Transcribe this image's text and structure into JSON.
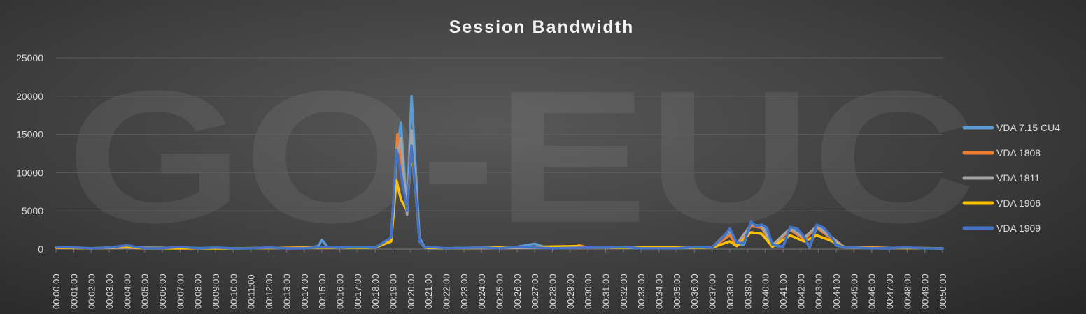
{
  "chart_data": {
    "type": "line",
    "title": "Session Bandwidth",
    "watermark": "GO-EUC",
    "xlabel": "",
    "ylabel": "",
    "ylim": [
      0,
      25000
    ],
    "y_ticks": [
      0,
      5000,
      10000,
      15000,
      20000,
      25000
    ],
    "grid": true,
    "legend_position": "right",
    "colors": {
      "background": "#404040",
      "grid": "#5e5e5e",
      "text": "#d9d9d9",
      "title": "#f2f2f2"
    },
    "x_labels": [
      "00:00:00",
      "00:01:00",
      "00:02:00",
      "00:03:00",
      "00:04:00",
      "00:05:00",
      "00:06:00",
      "00:07:00",
      "00:08:00",
      "00:09:00",
      "00:10:00",
      "00:11:00",
      "00:12:00",
      "00:13:00",
      "00:14:00",
      "00:15:00",
      "00:16:00",
      "00:17:00",
      "00:18:00",
      "00:19:00",
      "00:20:00",
      "00:21:00",
      "00:22:00",
      "00:23:00",
      "00:24:00",
      "00:25:00",
      "00:26:00",
      "00:27:00",
      "00:28:00",
      "00:29:00",
      "00:30:00",
      "00:31:00",
      "00:32:00",
      "00:33:00",
      "00:34:00",
      "00:35:00",
      "00:36:00",
      "00:37:00",
      "00:38:00",
      "00:39:00",
      "00:40:00",
      "00:41:00",
      "00:42:00",
      "00:43:00",
      "00:44:00",
      "00:45:00",
      "00:46:00",
      "00:47:00",
      "00:48:00",
      "00:49:00",
      "00:50:00"
    ],
    "series": [
      {
        "name": "VDA 7.15 CU4",
        "color": "#5b9bd5",
        "points": [
          [
            0,
            300
          ],
          [
            1,
            200
          ],
          [
            2,
            100
          ],
          [
            3,
            200
          ],
          [
            4,
            400
          ],
          [
            5,
            100
          ],
          [
            6,
            100
          ],
          [
            7,
            200
          ],
          [
            8,
            100
          ],
          [
            9,
            100
          ],
          [
            10,
            100
          ],
          [
            11,
            100
          ],
          [
            12,
            200
          ],
          [
            13,
            100
          ],
          [
            14,
            100
          ],
          [
            14.8,
            400
          ],
          [
            15,
            1200
          ],
          [
            15.3,
            300
          ],
          [
            16,
            200
          ],
          [
            17,
            300
          ],
          [
            18,
            200
          ],
          [
            18.9,
            1500
          ],
          [
            19.2,
            12500
          ],
          [
            19.45,
            16500
          ],
          [
            19.8,
            5000
          ],
          [
            20.05,
            20000
          ],
          [
            20.3,
            10000
          ],
          [
            20.5,
            1500
          ],
          [
            20.8,
            200
          ],
          [
            21,
            100
          ],
          [
            22,
            100
          ],
          [
            24,
            200
          ],
          [
            25,
            200
          ],
          [
            26,
            300
          ],
          [
            27,
            700
          ],
          [
            27.5,
            300
          ],
          [
            28,
            200
          ],
          [
            29,
            200
          ],
          [
            30,
            200
          ],
          [
            31,
            200
          ],
          [
            32,
            200
          ],
          [
            33,
            100
          ],
          [
            34,
            100
          ],
          [
            35,
            100
          ],
          [
            36,
            200
          ],
          [
            37,
            200
          ],
          [
            37.6,
            1200
          ],
          [
            38,
            2300
          ],
          [
            38.4,
            600
          ],
          [
            38.8,
            600
          ],
          [
            39.2,
            3400
          ],
          [
            39.5,
            3000
          ],
          [
            39.8,
            3100
          ],
          [
            40.1,
            2500
          ],
          [
            40.4,
            500
          ],
          [
            41,
            300
          ],
          [
            41.4,
            2800
          ],
          [
            41.8,
            2600
          ],
          [
            42.2,
            1500
          ],
          [
            42.5,
            200
          ],
          [
            42.9,
            2900
          ],
          [
            43.3,
            2500
          ],
          [
            43.6,
            1800
          ],
          [
            44,
            500
          ],
          [
            44.5,
            200
          ],
          [
            45,
            200
          ],
          [
            46,
            100
          ],
          [
            47,
            100
          ],
          [
            48,
            200
          ],
          [
            49,
            100
          ],
          [
            50,
            100
          ]
        ]
      },
      {
        "name": "VDA 1808",
        "color": "#ed7d31",
        "points": [
          [
            0,
            200
          ],
          [
            2,
            100
          ],
          [
            4,
            200
          ],
          [
            5,
            100
          ],
          [
            10,
            100
          ],
          [
            15,
            200
          ],
          [
            18,
            200
          ],
          [
            18.9,
            1200
          ],
          [
            19.25,
            15000
          ],
          [
            19.5,
            11000
          ],
          [
            19.8,
            5500
          ],
          [
            20.05,
            15000
          ],
          [
            20.3,
            8000
          ],
          [
            20.5,
            1000
          ],
          [
            20.8,
            200
          ],
          [
            22,
            100
          ],
          [
            29,
            200
          ],
          [
            29.5,
            500
          ],
          [
            30,
            200
          ],
          [
            32,
            200
          ],
          [
            37,
            200
          ],
          [
            38,
            1800
          ],
          [
            38.4,
            500
          ],
          [
            39.2,
            3000
          ],
          [
            39.8,
            2800
          ],
          [
            40.4,
            400
          ],
          [
            41.4,
            2500
          ],
          [
            42.2,
            1300
          ],
          [
            42.9,
            2800
          ],
          [
            43.6,
            1600
          ],
          [
            44.5,
            200
          ],
          [
            50,
            100
          ]
        ]
      },
      {
        "name": "VDA 1811",
        "color": "#a5a5a5",
        "points": [
          [
            0,
            200
          ],
          [
            2,
            100
          ],
          [
            4,
            200
          ],
          [
            10,
            100
          ],
          [
            15,
            200
          ],
          [
            18,
            200
          ],
          [
            18.9,
            1000
          ],
          [
            19.2,
            12000
          ],
          [
            19.45,
            14500
          ],
          [
            19.8,
            4500
          ],
          [
            20.05,
            15500
          ],
          [
            20.3,
            8000
          ],
          [
            20.5,
            1000
          ],
          [
            20.8,
            200
          ],
          [
            22,
            100
          ],
          [
            30,
            200
          ],
          [
            32,
            200
          ],
          [
            37,
            200
          ],
          [
            38,
            2500
          ],
          [
            38.4,
            700
          ],
          [
            39.2,
            3200
          ],
          [
            39.8,
            3000
          ],
          [
            40.4,
            500
          ],
          [
            41.4,
            2700
          ],
          [
            42.2,
            1500
          ],
          [
            42.9,
            3000
          ],
          [
            43.6,
            1800
          ],
          [
            44.5,
            200
          ],
          [
            50,
            100
          ]
        ]
      },
      {
        "name": "VDA 1906",
        "color": "#ffc000",
        "points": [
          [
            0,
            200
          ],
          [
            2,
            100
          ],
          [
            4,
            300
          ],
          [
            5,
            100
          ],
          [
            10,
            100
          ],
          [
            15,
            200
          ],
          [
            18,
            200
          ],
          [
            18.9,
            1000
          ],
          [
            19.2,
            9000
          ],
          [
            19.45,
            6500
          ],
          [
            19.8,
            5000
          ],
          [
            20.05,
            13000
          ],
          [
            20.3,
            7000
          ],
          [
            20.5,
            1000
          ],
          [
            20.8,
            200
          ],
          [
            22,
            100
          ],
          [
            29.5,
            400
          ],
          [
            30,
            200
          ],
          [
            32,
            200
          ],
          [
            37,
            200
          ],
          [
            38,
            1000
          ],
          [
            38.4,
            400
          ],
          [
            39.2,
            2200
          ],
          [
            39.8,
            2000
          ],
          [
            40.4,
            300
          ],
          [
            41.4,
            1800
          ],
          [
            42.2,
            1000
          ],
          [
            42.9,
            1800
          ],
          [
            43.6,
            1200
          ],
          [
            44.5,
            200
          ],
          [
            50,
            100
          ]
        ]
      },
      {
        "name": "VDA 1909",
        "color": "#4472c4",
        "points": [
          [
            0,
            300
          ],
          [
            1,
            200
          ],
          [
            2,
            100
          ],
          [
            3,
            200
          ],
          [
            4,
            500
          ],
          [
            4.5,
            300
          ],
          [
            5,
            100
          ],
          [
            6,
            100
          ],
          [
            7,
            300
          ],
          [
            8,
            100
          ],
          [
            9,
            200
          ],
          [
            10,
            100
          ],
          [
            11,
            100
          ],
          [
            12,
            200
          ],
          [
            13,
            100
          ],
          [
            14,
            100
          ],
          [
            15,
            300
          ],
          [
            16,
            200
          ],
          [
            17,
            300
          ],
          [
            18,
            200
          ],
          [
            18.9,
            1500
          ],
          [
            19.2,
            13000
          ],
          [
            19.45,
            10000
          ],
          [
            19.8,
            5000
          ],
          [
            20.05,
            13500
          ],
          [
            20.3,
            7000
          ],
          [
            20.5,
            1000
          ],
          [
            20.8,
            200
          ],
          [
            21,
            300
          ],
          [
            22,
            100
          ],
          [
            24,
            200
          ],
          [
            25,
            100
          ],
          [
            26,
            300
          ],
          [
            27,
            200
          ],
          [
            28,
            100
          ],
          [
            30,
            200
          ],
          [
            31,
            200
          ],
          [
            32,
            300
          ],
          [
            33,
            100
          ],
          [
            35,
            100
          ],
          [
            36,
            300
          ],
          [
            37,
            200
          ],
          [
            37.6,
            1500
          ],
          [
            38,
            2700
          ],
          [
            38.4,
            800
          ],
          [
            38.8,
            800
          ],
          [
            39.2,
            3600
          ],
          [
            39.5,
            3000
          ],
          [
            39.8,
            3200
          ],
          [
            40.1,
            2800
          ],
          [
            40.4,
            600
          ],
          [
            41,
            300
          ],
          [
            41.4,
            2900
          ],
          [
            41.8,
            2700
          ],
          [
            42.2,
            1600
          ],
          [
            42.5,
            300
          ],
          [
            42.9,
            3200
          ],
          [
            43.3,
            2800
          ],
          [
            43.6,
            2000
          ],
          [
            44,
            600
          ],
          [
            44.5,
            200
          ],
          [
            45,
            200
          ],
          [
            46,
            100
          ],
          [
            48,
            200
          ],
          [
            49,
            100
          ],
          [
            50,
            100
          ]
        ]
      }
    ]
  }
}
